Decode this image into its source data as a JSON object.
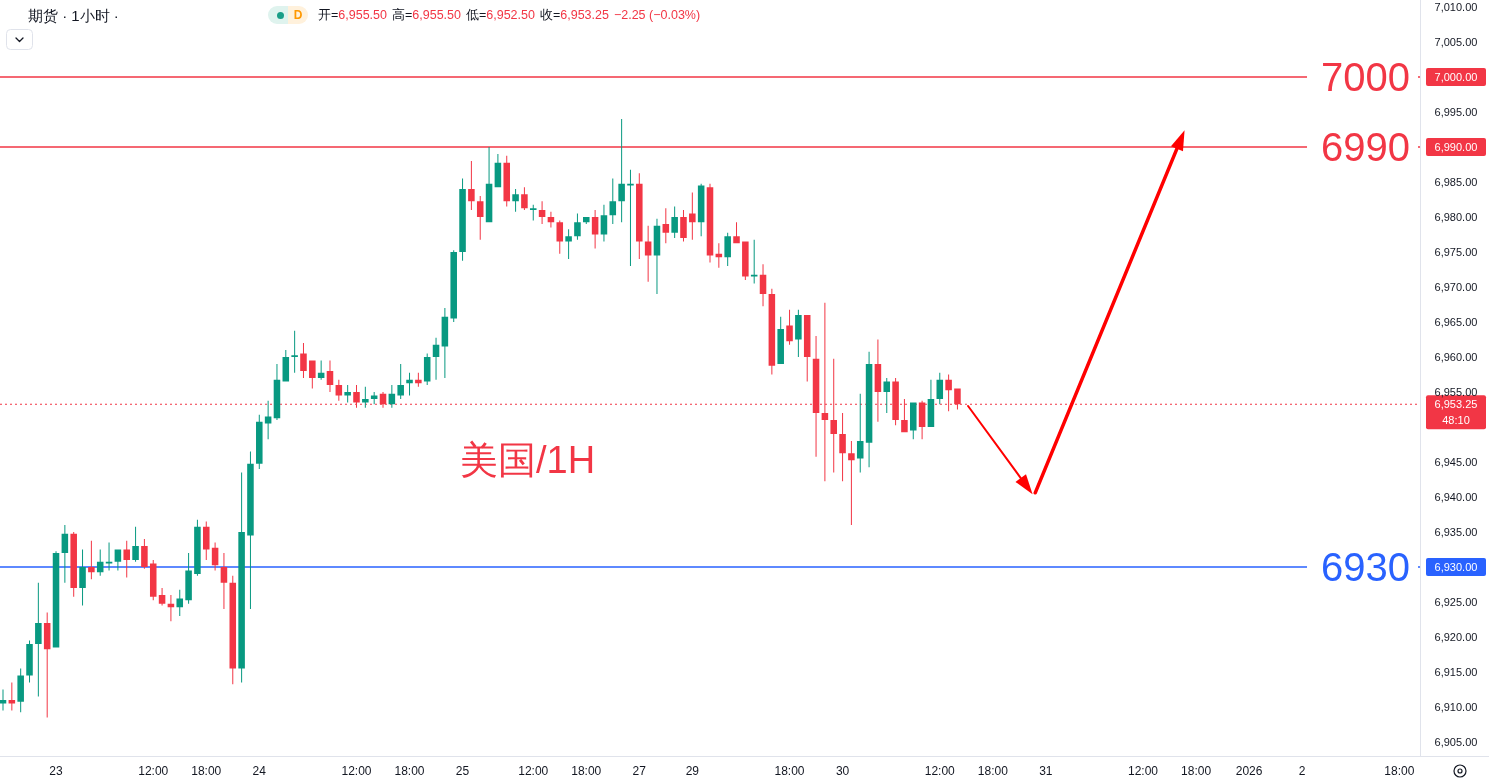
{
  "chart_data": {
    "type": "candlestick",
    "title": "期货 · 1小时 ·",
    "categories": [
      null,
      null,
      null,
      null,
      null,
      null,
      "23",
      null,
      null,
      null,
      null,
      null,
      null,
      null,
      null,
      null,
      null,
      "12:00",
      null,
      null,
      null,
      null,
      null,
      "18:00",
      null,
      null,
      null,
      null,
      null,
      "24",
      null,
      null,
      null,
      null,
      null,
      null,
      null,
      null,
      null,
      null,
      "12:00",
      null,
      null,
      null,
      null,
      null,
      "18:00",
      null,
      null,
      null,
      null,
      null,
      "25",
      null,
      null,
      null,
      null,
      null,
      null,
      null,
      "12:00",
      null,
      null,
      null,
      null,
      null,
      "18:00",
      null,
      null,
      null,
      null,
      null,
      "27",
      null,
      null,
      null,
      null,
      null,
      "29",
      null,
      null,
      null,
      null,
      null,
      null,
      null,
      null,
      null,
      null,
      "18:00",
      null,
      null,
      null,
      null,
      null,
      "30",
      null,
      null,
      null,
      null,
      null,
      null,
      null,
      null,
      null,
      null,
      "12:00",
      null,
      null,
      null,
      null,
      null,
      "18:00",
      null,
      null,
      null,
      null,
      null,
      "31",
      null,
      null,
      null,
      null,
      null,
      null,
      null,
      null,
      null,
      null,
      "12:00",
      null,
      null,
      null,
      null,
      null,
      "18:00",
      null,
      null,
      null,
      null,
      null,
      "2026",
      null,
      null,
      null,
      null,
      null,
      "2",
      null,
      null,
      null,
      null,
      null,
      null,
      null,
      null,
      null,
      null,
      "18:00",
      null,
      null
    ],
    "ohlc": [
      [
        6910.5,
        6912.5,
        6909.5,
        6911.0
      ],
      [
        6911.0,
        6913.5,
        6909.5,
        6910.5
      ],
      [
        6910.75,
        6915.5,
        6909.25,
        6914.5
      ],
      [
        6914.5,
        6919.5,
        6913.5,
        6919.0
      ],
      [
        6919.0,
        6927.75,
        6911.5,
        6922.0
      ],
      [
        6922.0,
        6923.5,
        6908.5,
        6918.25
      ],
      [
        6918.5,
        6932.25,
        6918.5,
        6932.0
      ],
      [
        6932.0,
        6936.0,
        6927.75,
        6934.75
      ],
      [
        6934.75,
        6935.0,
        6925.75,
        6927.0
      ],
      [
        6927.0,
        6932.5,
        6924.5,
        6930.0
      ],
      [
        6930.0,
        6933.75,
        6928.25,
        6929.25
      ],
      [
        6929.25,
        6932.5,
        6928.75,
        6930.75
      ],
      [
        6930.5,
        6933.5,
        6929.5,
        6930.75
      ],
      [
        6930.75,
        6932.5,
        6929.5,
        6932.5
      ],
      [
        6932.5,
        6933.75,
        6928.5,
        6931.0
      ],
      [
        6931.0,
        6935.75,
        6930.75,
        6933.0
      ],
      [
        6933.0,
        6934.0,
        6929.75,
        6930.0
      ],
      [
        6930.5,
        6931.0,
        6925.25,
        6925.75
      ],
      [
        6926.0,
        6927.0,
        6924.5,
        6924.75
      ],
      [
        6924.75,
        6926.0,
        6922.25,
        6924.25
      ],
      [
        6924.25,
        6926.75,
        6923.0,
        6925.5
      ],
      [
        6925.25,
        6932.0,
        6924.75,
        6929.5
      ],
      [
        6929.0,
        6936.75,
        6928.75,
        6935.75
      ],
      [
        6935.75,
        6936.5,
        6931.0,
        6932.5
      ],
      [
        6932.75,
        6933.5,
        6929.5,
        6930.25
      ],
      [
        6930.0,
        6932.0,
        6924.0,
        6927.75
      ],
      [
        6927.75,
        6928.75,
        6913.25,
        6915.5
      ],
      [
        6915.5,
        6943.5,
        6913.5,
        6935.0
      ],
      [
        6934.5,
        6946.5,
        6924.0,
        6944.75
      ],
      [
        6944.75,
        6951.75,
        6944.0,
        6950.75
      ],
      [
        6950.5,
        6953.75,
        6948.25,
        6951.5
      ],
      [
        6951.25,
        6959.0,
        6951.0,
        6956.75
      ],
      [
        6956.5,
        6961.0,
        6956.5,
        6960.0
      ],
      [
        6960.0,
        6963.75,
        6957.75,
        6960.25
      ],
      [
        6960.5,
        6962.0,
        6957.0,
        6958.0
      ],
      [
        6959.5,
        6959.5,
        6955.5,
        6957.0
      ],
      [
        6957.0,
        6959.5,
        6956.75,
        6957.75
      ],
      [
        6958.0,
        6959.5,
        6955.0,
        6956.0
      ],
      [
        6956.0,
        6956.75,
        6953.75,
        6954.5
      ],
      [
        6954.5,
        6956.0,
        6953.5,
        6955.0
      ],
      [
        6955.0,
        6956.0,
        6952.75,
        6953.5
      ],
      [
        6953.5,
        6955.75,
        6952.75,
        6954.0
      ],
      [
        6954.0,
        6955.0,
        6953.25,
        6954.5
      ],
      [
        6954.75,
        6955.0,
        6952.75,
        6953.25
      ],
      [
        6953.25,
        6956.0,
        6952.75,
        6954.75
      ],
      [
        6954.5,
        6959.0,
        6954.0,
        6956.0
      ],
      [
        6956.25,
        6957.75,
        6954.5,
        6956.75
      ],
      [
        6956.75,
        6957.75,
        6955.75,
        6956.25
      ],
      [
        6956.5,
        6960.5,
        6956.0,
        6960.0
      ],
      [
        6960.0,
        6962.75,
        6956.75,
        6961.75
      ],
      [
        6961.5,
        6967.0,
        6957.0,
        6965.75
      ],
      [
        6965.5,
        6975.25,
        6965.0,
        6975.0
      ],
      [
        6975.0,
        6985.5,
        6973.75,
        6984.0
      ],
      [
        6984.0,
        6988.0,
        6981.0,
        6982.25
      ],
      [
        6982.25,
        6983.0,
        6976.75,
        6980.0
      ],
      [
        6979.25,
        6990.0,
        6979.25,
        6984.75
      ],
      [
        6984.25,
        6989.0,
        6984.25,
        6987.75
      ],
      [
        6987.75,
        6988.75,
        6981.5,
        6982.25
      ],
      [
        6982.25,
        6984.0,
        6980.75,
        6983.25
      ],
      [
        6983.25,
        6984.25,
        6981.0,
        6981.25
      ],
      [
        6981.0,
        6981.75,
        6979.5,
        6981.25
      ],
      [
        6981.0,
        6982.25,
        6979.0,
        6980.0
      ],
      [
        6980.0,
        6980.75,
        6978.5,
        6979.25
      ],
      [
        6979.25,
        6979.5,
        6974.75,
        6976.5
      ],
      [
        6976.5,
        6978.25,
        6974.0,
        6977.25
      ],
      [
        6977.25,
        6980.5,
        6976.75,
        6979.25
      ],
      [
        6979.25,
        6980.0,
        6979.0,
        6980.0
      ],
      [
        6980.0,
        6981.0,
        6975.5,
        6977.5
      ],
      [
        6977.5,
        6981.75,
        6976.5,
        6980.25
      ],
      [
        6980.25,
        6985.5,
        6979.0,
        6982.25
      ],
      [
        6982.25,
        6994.0,
        6979.25,
        6984.75
      ],
      [
        6984.5,
        6986.75,
        6973.0,
        6984.75
      ],
      [
        6984.75,
        6986.25,
        6974.0,
        6976.5
      ],
      [
        6976.5,
        6978.75,
        6970.75,
        6974.5
      ],
      [
        6974.5,
        6979.75,
        6969.0,
        6978.75
      ],
      [
        6979.0,
        6981.25,
        6976.25,
        6977.75
      ],
      [
        6977.75,
        6981.5,
        6977.0,
        6980.0
      ],
      [
        6980.0,
        6981.0,
        6976.5,
        6977.0
      ],
      [
        6980.5,
        6983.5,
        6976.75,
        6979.25
      ],
      [
        6979.25,
        6984.75,
        6977.25,
        6984.5
      ],
      [
        6984.25,
        6984.75,
        6973.5,
        6974.5
      ],
      [
        6974.75,
        6976.25,
        6972.75,
        6974.25
      ],
      [
        6974.25,
        6977.75,
        6973.0,
        6977.25
      ],
      [
        6977.25,
        6979.25,
        6976.25,
        6976.25
      ],
      [
        6976.5,
        6976.5,
        6971.0,
        6971.5
      ],
      [
        6971.5,
        6976.75,
        6970.5,
        6971.75
      ],
      [
        6971.75,
        6973.25,
        6967.25,
        6969.0
      ],
      [
        6969.0,
        6969.75,
        6957.5,
        6958.75
      ],
      [
        6959.0,
        6965.75,
        6959.0,
        6964.0
      ],
      [
        6964.5,
        6966.75,
        6961.75,
        6962.25
      ],
      [
        6962.5,
        6966.75,
        6960.0,
        6966.0
      ],
      [
        6966.0,
        6966.0,
        6956.5,
        6960.0
      ],
      [
        6959.75,
        6963.0,
        6945.75,
        6952.0
      ],
      [
        6952.0,
        6967.75,
        6942.25,
        6951.0
      ],
      [
        6951.0,
        6959.75,
        6943.5,
        6949.0
      ],
      [
        6949.0,
        6952.0,
        6942.25,
        6946.25
      ],
      [
        6946.25,
        6948.0,
        6936.0,
        6945.25
      ],
      [
        6945.5,
        6954.75,
        6943.5,
        6948.0
      ],
      [
        6947.75,
        6960.75,
        6944.25,
        6959.0
      ],
      [
        6959.0,
        6962.5,
        6950.75,
        6955.0
      ],
      [
        6955.0,
        6957.0,
        6952.0,
        6956.5
      ],
      [
        6956.5,
        6957.0,
        6950.25,
        6951.0
      ],
      [
        6951.0,
        6954.0,
        6949.25,
        6949.25
      ],
      [
        6949.5,
        6953.5,
        6948.25,
        6953.5
      ],
      [
        6953.5,
        6953.75,
        6948.25,
        6950.0
      ],
      [
        6950.0,
        6956.75,
        6950.0,
        6954.0
      ],
      [
        6954.0,
        6957.75,
        6953.25,
        6956.75
      ],
      [
        6956.75,
        6957.5,
        6952.25,
        6955.25
      ],
      [
        6955.5,
        6955.5,
        6952.5,
        6953.25
      ],
      null,
      null,
      null,
      null,
      null,
      null,
      null,
      null,
      null,
      null,
      null,
      null,
      null,
      null,
      null,
      null,
      null,
      null,
      null,
      null,
      null,
      null,
      null,
      null,
      null,
      null,
      null,
      null,
      null,
      null,
      null,
      null,
      null,
      null,
      null,
      null,
      null,
      null,
      null,
      null,
      null,
      null,
      null,
      null,
      null,
      null,
      null,
      null,
      null,
      null,
      null,
      null
    ],
    "colors": [
      "#089981",
      "#f23645",
      "#089981",
      "#089981",
      "#089981",
      "#f23645",
      "#089981",
      "#089981",
      "#f23645",
      "#089981",
      "#f23645",
      "#089981",
      "#089981",
      "#089981",
      "#f23645",
      "#089981",
      "#f23645",
      "#f23645",
      "#f23645",
      "#f23645",
      "#089981",
      "#089981",
      "#089981",
      "#f23645",
      "#f23645",
      "#f23645",
      "#f23645",
      "#089981",
      "#089981",
      "#089981",
      "#089981",
      "#089981",
      "#089981",
      "#089981",
      "#f23645",
      "#f23645",
      "#089981",
      "#f23645",
      "#f23645",
      "#089981",
      "#f23645",
      "#089981",
      "#089981",
      "#f23645",
      "#089981",
      "#089981",
      "#089981",
      "#f23645",
      "#089981",
      "#089981",
      "#089981",
      "#089981",
      "#089981",
      "#f23645",
      "#f23645",
      "#089981",
      "#089981",
      "#f23645",
      "#089981",
      "#f23645",
      "#089981",
      "#f23645",
      "#f23645",
      "#f23645",
      "#089981",
      "#089981",
      "#089981",
      "#f23645",
      "#089981",
      "#089981",
      "#089981",
      "#089981",
      "#f23645",
      "#f23645",
      "#089981",
      "#f23645",
      "#089981",
      "#f23645",
      "#f23645",
      "#089981",
      "#f23645",
      "#f23645",
      "#089981",
      "#f23645",
      "#f23645",
      "#089981",
      "#f23645",
      "#f23645",
      "#089981",
      "#f23645",
      "#089981",
      "#f23645",
      "#f23645",
      "#f23645",
      "#f23645",
      "#f23645",
      "#f23645",
      "#089981",
      "#089981",
      "#f23645",
      "#089981",
      "#f23645",
      "#f23645",
      "#089981",
      "#f23645",
      "#089981",
      "#089981",
      "#f23645",
      "#f23645",
      null,
      null,
      null,
      null,
      null,
      null,
      null,
      null,
      null,
      null,
      null,
      null,
      null,
      null,
      null,
      null,
      null,
      null,
      null,
      null,
      null,
      null,
      null,
      null,
      null,
      null,
      null,
      null,
      null,
      null,
      null,
      null,
      null,
      null,
      null,
      null,
      null,
      null,
      null,
      null,
      null,
      null,
      null,
      null,
      null,
      null,
      null,
      null,
      null,
      null,
      null,
      null
    ],
    "ylim": [
      6903,
      7011
    ],
    "yticks": [
      {
        "value": 6905,
        "label": "6,905.00"
      },
      {
        "value": 6910,
        "label": "6,910.00"
      },
      {
        "value": 6915,
        "label": "6,915.00"
      },
      {
        "value": 6920,
        "label": "6,920.00"
      },
      {
        "value": 6925,
        "label": "6,925.00"
      },
      {
        "value": 6930,
        "label": "6,930.00"
      },
      {
        "value": 6935,
        "label": "6,935.00"
      },
      {
        "value": 6940,
        "label": "6,940.00"
      },
      {
        "value": 6945,
        "label": "6,945.00"
      },
      {
        "value": 6955,
        "label": "6,955.00"
      },
      {
        "value": 6960,
        "label": "6,960.00"
      },
      {
        "value": 6965,
        "label": "6,965.00"
      },
      {
        "value": 6970,
        "label": "6,970.00"
      },
      {
        "value": 6975,
        "label": "6,975.00"
      },
      {
        "value": 6980,
        "label": "6,980.00"
      },
      {
        "value": 6985,
        "label": "6,985.00"
      },
      {
        "value": 6990,
        "label": "6,990.00"
      },
      {
        "value": 6995,
        "label": "6,995.00"
      },
      {
        "value": 7000,
        "label": "7,000.00"
      },
      {
        "value": 7005,
        "label": "7,005.00"
      },
      {
        "value": 7010,
        "label": "7,010.00"
      }
    ],
    "ref_lines": [
      {
        "axis": "y",
        "value": 7000,
        "label": "7000",
        "color": "#f23645"
      },
      {
        "axis": "y",
        "value": 6990,
        "label": "6990",
        "color": "#f23645"
      },
      {
        "axis": "y",
        "value": 6930,
        "label": "6930",
        "color": "#2962ff"
      },
      {
        "axis": "y",
        "value": 6953.25,
        "label": "6,953.25",
        "color": "#f23645",
        "line_style": "dotted"
      }
    ],
    "annotations": [
      "美国/1H",
      "D",
      "开=",
      "6,955.50",
      "高=",
      "6,955.50",
      "低=",
      "6,952.50",
      "收=",
      "6,953.25",
      "−2.25 (−0.03%)",
      "48:10"
    ]
  }
}
